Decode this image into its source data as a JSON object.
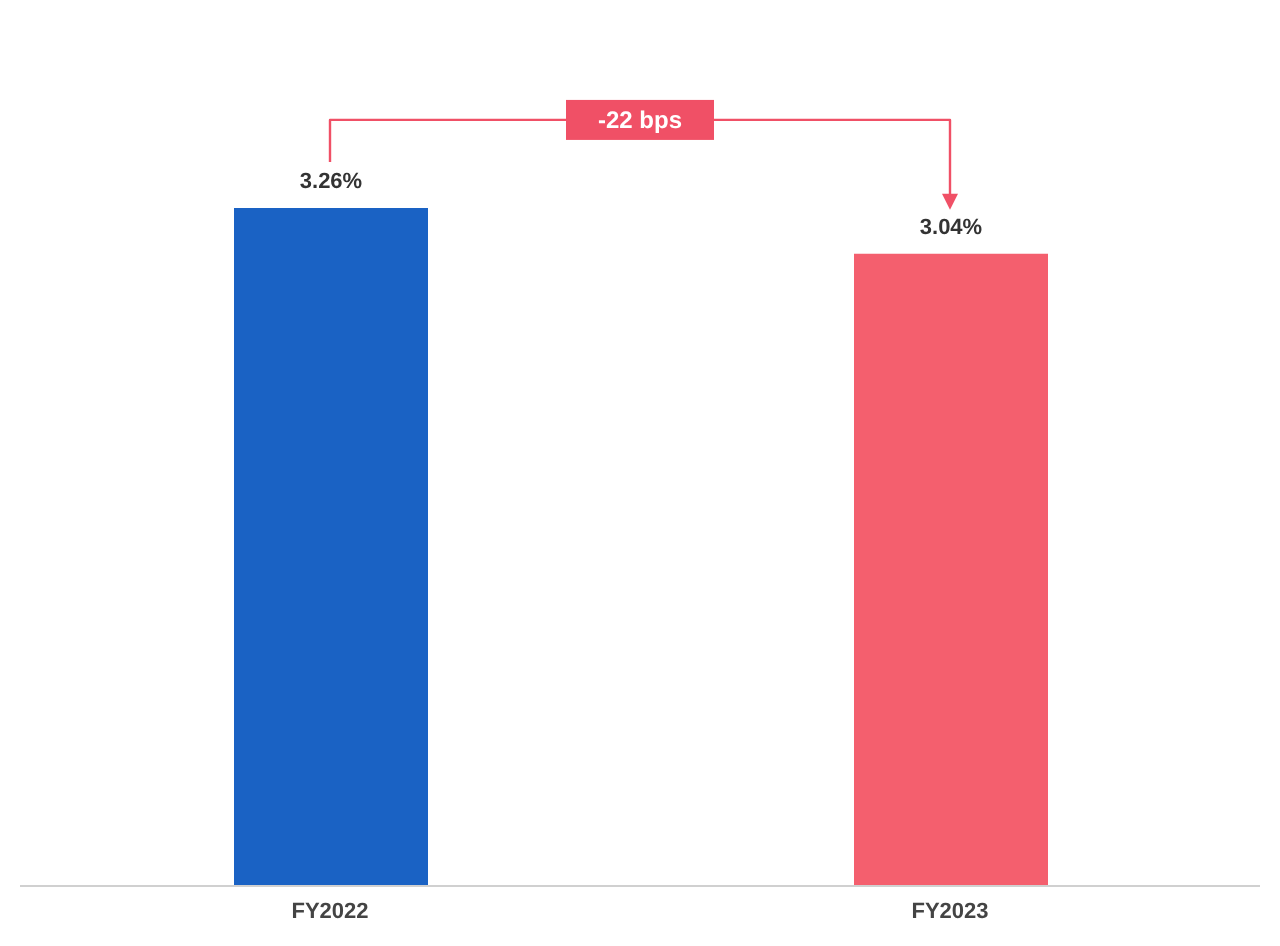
{
  "chart_data": {
    "type": "bar",
    "categories": [
      "FY2022",
      "FY2023"
    ],
    "values": [
      3.26,
      3.04
    ],
    "colors": [
      "#1a62c4",
      "#f45f6e"
    ],
    "value_labels": [
      "3.26%",
      "3.04%"
    ],
    "tick_labels": "x",
    "grid": false,
    "annotations": [
      "-22 bps"
    ]
  }
}
